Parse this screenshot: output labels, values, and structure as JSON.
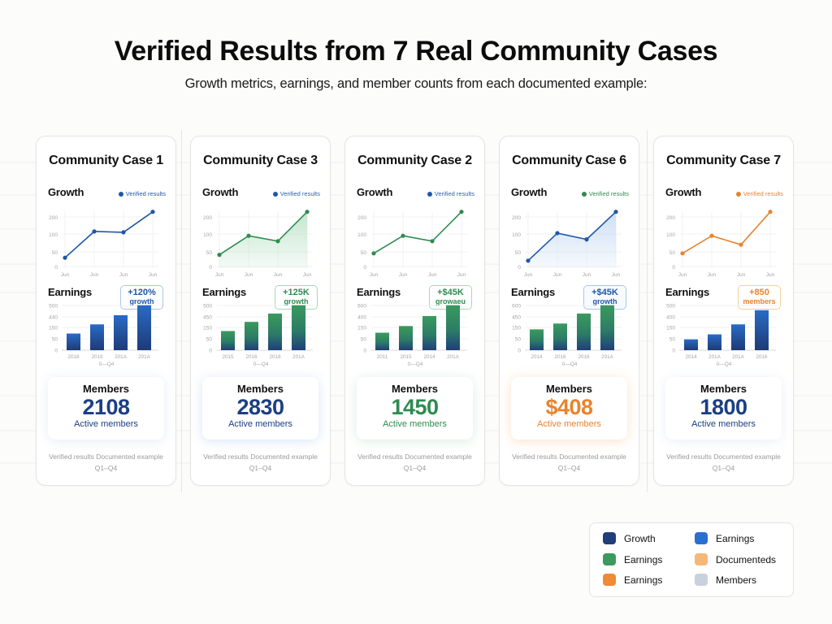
{
  "header": {
    "title": "Verified Results from 7 Real Community Cases",
    "subtitle": "Growth metrics, earnings, and member counts from each documented example:"
  },
  "colors": {
    "blue": "#1f56a8",
    "navy": "#1c3f7c",
    "green": "#2e8b50",
    "orange": "#e8832e",
    "peach": "#f5b877",
    "gray": "#c8d0dc"
  },
  "cards": [
    {
      "title": "Community Case 1",
      "growth_label": "Growth",
      "legend_label": "Verified results",
      "earnings_label": "Earnings",
      "badge_line1": "+120%",
      "badge_line2": "growth",
      "members_label": "Members",
      "members_value": "2108",
      "members_sub": "Active members",
      "foot1": "Verified results Documented example",
      "foot2": "Q1–Q4"
    },
    {
      "title": "Community Case 3",
      "growth_label": "Growth",
      "legend_label": "Verified results",
      "earnings_label": "Earnings",
      "badge_line1": "+125K",
      "badge_line2": "growth",
      "members_label": "Members",
      "members_value": "2830",
      "members_sub": "Active members",
      "foot1": "Verified results Documented example",
      "foot2": "Q1–Q4"
    },
    {
      "title": "Community Case 2",
      "growth_label": "Growth",
      "legend_label": "Verified results",
      "earnings_label": "Earnings",
      "badge_line1": "+$45K",
      "badge_line2": "growaeu",
      "members_label": "Members",
      "members_value": "1450",
      "members_sub": "Active members",
      "foot1": "Verified results Documented example",
      "foot2": "Q1–Q4"
    },
    {
      "title": "Community Case 6",
      "growth_label": "Growth",
      "legend_label": "Verified results",
      "earnings_label": "Earnings",
      "badge_line1": "+$45K",
      "badge_line2": "growth",
      "members_label": "Members",
      "members_value": "$408",
      "members_sub": "Active members",
      "foot1": "Verified results Documented example",
      "foot2": "Q1–Q4"
    },
    {
      "title": "Community Case 7",
      "growth_label": "Growth",
      "legend_label": "Verified results",
      "earnings_label": "Earnings",
      "badge_line1": "+850",
      "badge_line2": "members",
      "members_label": "Members",
      "members_value": "1800",
      "members_sub": "Active members",
      "foot1": "Verified results Documented example",
      "foot2": "Q1–Q4"
    }
  ],
  "legend": {
    "items": [
      {
        "label": "Growth",
        "color": "#1f3f7a"
      },
      {
        "label": "Earnings",
        "color": "#2a6fd0"
      },
      {
        "label": "Earnings",
        "color": "#3b9a5e"
      },
      {
        "label": "Documenteds",
        "color": "#f5b877"
      },
      {
        "label": "Earnings",
        "color": "#ef8a36"
      },
      {
        "label": "Members",
        "color": "#c9d1dc"
      }
    ]
  },
  "chart_data": [
    {
      "type": "line",
      "title": "Community Case 1 — Growth",
      "x": [
        "Jun",
        "Jun",
        "Jun",
        "Jun"
      ],
      "values": [
        30,
        115,
        110,
        230
      ],
      "yticks": [
        0,
        50,
        100,
        200
      ],
      "legend": "Verified results",
      "color": "#1f56a8",
      "area_fill": false
    },
    {
      "type": "bar",
      "title": "Community Case 1 — Earnings",
      "categories": [
        "2018",
        "2019",
        "201A",
        "201A"
      ],
      "values": [
        100,
        155,
        210,
        270
      ],
      "yticks": [
        "0",
        "50",
        "150",
        "440",
        "500"
      ],
      "xlabel": "0—Q4",
      "annotation": "+120% growth"
    },
    {
      "type": "line",
      "title": "Community Case 3 — Growth",
      "x": [
        "Jun",
        "Jun",
        "Jun",
        "Jun"
      ],
      "values": [
        40,
        95,
        80,
        230
      ],
      "yticks": [
        0,
        50,
        100,
        200
      ],
      "legend": "Verified results",
      "color": "#2e8b50",
      "area_fill": true
    },
    {
      "type": "bar",
      "title": "Community Case 3 — Earnings",
      "categories": [
        "2015",
        "2016",
        "2018",
        "201A"
      ],
      "values": [
        115,
        170,
        220,
        270
      ],
      "yticks": [
        "0",
        "50",
        "150",
        "450",
        "500"
      ],
      "xlabel": "0—Q4",
      "annotation": "+125K growth"
    },
    {
      "type": "line",
      "title": "Community Case 2 — Growth",
      "x": [
        "Jun",
        "Jun",
        "Jun",
        "Jun"
      ],
      "values": [
        45,
        95,
        80,
        230
      ],
      "yticks": [
        0,
        50,
        100,
        200
      ],
      "legend": "Verified results",
      "color": "#2e8b50",
      "area_fill": false
    },
    {
      "type": "bar",
      "title": "Community Case 2 — Earnings",
      "categories": [
        "2011",
        "2015",
        "2014",
        "201A"
      ],
      "values": [
        105,
        145,
        205,
        270
      ],
      "yticks": [
        "0",
        "50",
        "150",
        "400",
        "600"
      ],
      "xlabel": "0—Q4",
      "annotation": "+$45K growaeu"
    },
    {
      "type": "line",
      "title": "Community Case 6 — Growth",
      "x": [
        "Jun",
        "Jun",
        "Jun",
        "Jun"
      ],
      "values": [
        20,
        105,
        85,
        230
      ],
      "yticks": [
        0,
        50,
        100,
        200
      ],
      "legend": "Verified results",
      "color": "#1f56a8",
      "area_fill": true
    },
    {
      "type": "bar",
      "title": "Community Case 6 — Earnings",
      "categories": [
        "2014",
        "2016",
        "2016",
        "201A"
      ],
      "values": [
        125,
        160,
        220,
        270
      ],
      "yticks": [
        "0",
        "50",
        "150",
        "450",
        "600"
      ],
      "xlabel": "0—Q4",
      "annotation": "+$45K growth"
    },
    {
      "type": "line",
      "title": "Community Case 7 — Growth",
      "x": [
        "Jun",
        "Jun",
        "Jun",
        "Jun"
      ],
      "values": [
        45,
        95,
        70,
        230
      ],
      "yticks": [
        0,
        50,
        100,
        200
      ],
      "legend": "Verified results",
      "color": "#e8832e",
      "area_fill": false
    },
    {
      "type": "bar",
      "title": "Community Case 7 — Earnings",
      "categories": [
        "2014",
        "201A",
        "201A",
        "2016"
      ],
      "values": [
        65,
        95,
        155,
        240
      ],
      "yticks": [
        "0",
        "50",
        "150",
        "400",
        "500"
      ],
      "xlabel": "0—Q4",
      "annotation": "+850 members"
    }
  ]
}
